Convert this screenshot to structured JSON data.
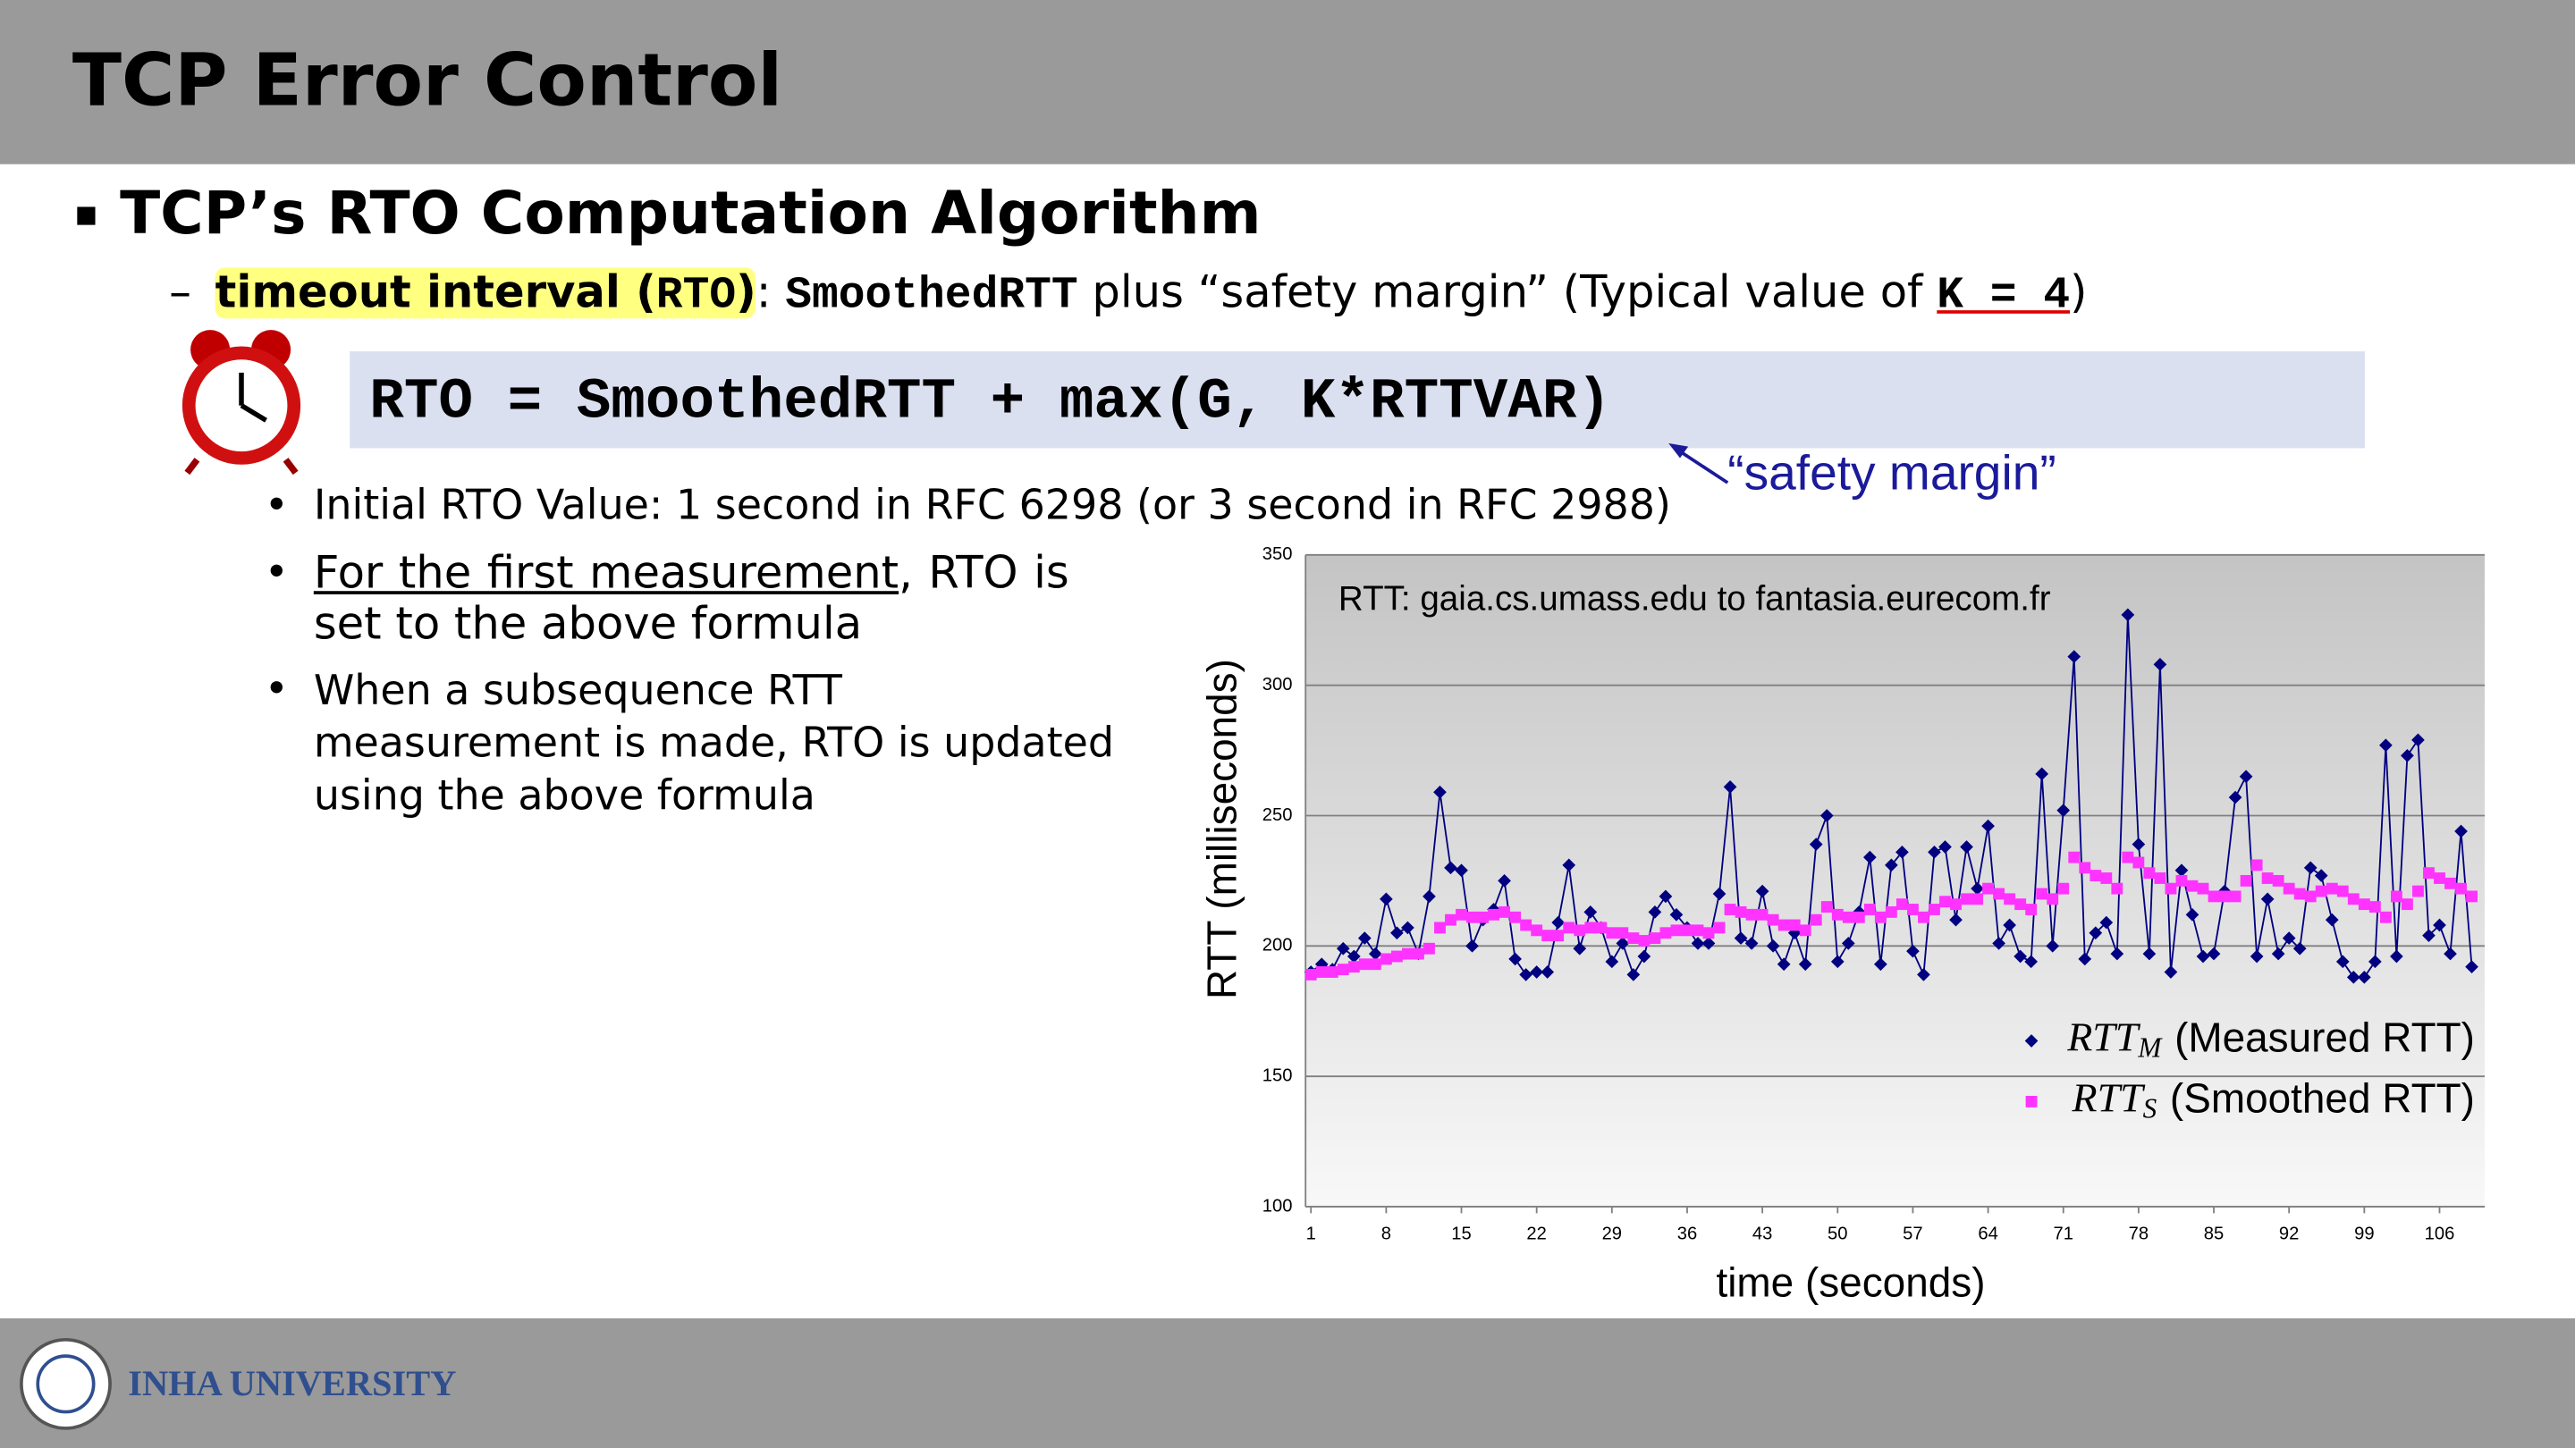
{
  "slide": {
    "title": "TCP Error Control",
    "heading": "TCP’s RTO Computation Algorithm",
    "sub_bullet": {
      "highlight_pre": "timeout interval (",
      "highlight_code": "RTO",
      "highlight_post": ")",
      "colon": ": ",
      "code": "SmoothedRTT",
      "text": " plus “safety margin” (Typical value of ",
      "k_code": "K = 4",
      "close": ")"
    },
    "formula": "RTO = SmoothedRTT + max(G, K*RTTVAR)",
    "annotation": "“safety margin”",
    "bullets": [
      {
        "text": "Initial RTO Value: 1 second in RFC 6298 (or 3 second in RFC 2988)"
      },
      {
        "underlined": "For the first measurement",
        "text": ", RTO is set to the above formula"
      },
      {
        "text": "When a subsequence RTT measurement is made, RTO is updated using the above formula"
      }
    ],
    "footer": "INHA UNIVERSITY"
  },
  "chart_data": {
    "type": "line",
    "title": "RTT: gaia.cs.umass.edu to fantasia.eurecom.fr",
    "x_label": "time (seconds)",
    "y_label": "RTT (milliseconds)",
    "x": [
      1,
      2,
      3,
      4,
      5,
      6,
      7,
      8,
      9,
      10,
      11,
      12,
      13,
      14,
      15,
      16,
      17,
      18,
      19,
      20,
      21,
      22,
      23,
      24,
      25,
      26,
      27,
      28,
      29,
      30,
      31,
      32,
      33,
      34,
      35,
      36,
      37,
      38,
      39,
      40,
      41,
      42,
      43,
      44,
      45,
      46,
      47,
      48,
      49,
      50,
      51,
      52,
      53,
      54,
      55,
      56,
      57,
      58,
      59,
      60,
      61,
      62,
      63,
      64,
      65,
      66,
      67,
      68,
      69,
      70,
      71,
      72,
      73,
      74,
      75,
      76,
      77,
      78,
      79,
      80,
      81,
      82,
      83,
      84,
      85,
      86,
      87,
      88,
      89,
      90,
      91,
      92,
      93,
      94,
      95,
      96,
      97,
      98,
      99,
      100,
      101,
      102,
      103,
      104,
      105,
      106,
      107,
      108,
      109
    ],
    "xlim": [
      0.5,
      110.2
    ],
    "xticks": [
      1,
      8,
      15,
      22,
      29,
      36,
      43,
      50,
      57,
      64,
      71,
      78,
      85,
      92,
      99,
      106
    ],
    "ylim": [
      100,
      350
    ],
    "yticks": [
      100,
      150,
      200,
      250,
      300,
      350
    ],
    "grid": true,
    "legend": "lower-right",
    "series": [
      {
        "symbol": "RTT",
        "subscript": "M",
        "name": "(Measured RTT)",
        "color": "#000080",
        "marker": "diamond",
        "line": true,
        "values": [
          190,
          193,
          191,
          199,
          196,
          203,
          197,
          218,
          205,
          207,
          197,
          219,
          259,
          230,
          229,
          200,
          210,
          214,
          225,
          195,
          189,
          190,
          190,
          209,
          231,
          199,
          213,
          207,
          194,
          201,
          189,
          196,
          213,
          219,
          212,
          207,
          201,
          201,
          220,
          261,
          203,
          201,
          221,
          200,
          193,
          205,
          193,
          239,
          250,
          194,
          201,
          213,
          234,
          193,
          231,
          236,
          198,
          189,
          236,
          238,
          210,
          238,
          222,
          246,
          201,
          208,
          196,
          194,
          266,
          200,
          252,
          311,
          195,
          205,
          209,
          197,
          327,
          239,
          197,
          308,
          190,
          229,
          212,
          196,
          197,
          221,
          257,
          265,
          196,
          218,
          197,
          203,
          199,
          230,
          227,
          210,
          194,
          188,
          188,
          194,
          277,
          196,
          273,
          279,
          204,
          208,
          197,
          244,
          192
        ]
      },
      {
        "symbol": "RTT",
        "subscript": "S",
        "name": "(Smoothed RTT)",
        "color": "#ff33ff",
        "marker": "square",
        "line": false,
        "values": [
          189,
          190,
          190,
          191,
          192,
          193,
          193,
          195,
          196,
          197,
          197,
          199,
          207,
          210,
          212,
          211,
          211,
          212,
          213,
          211,
          208,
          206,
          204,
          204,
          207,
          206,
          207,
          207,
          205,
          205,
          203,
          202,
          203,
          205,
          206,
          206,
          206,
          205,
          207,
          214,
          213,
          212,
          212,
          210,
          208,
          208,
          206,
          210,
          215,
          212,
          211,
          211,
          214,
          211,
          213,
          216,
          214,
          211,
          214,
          217,
          216,
          218,
          218,
          222,
          220,
          218,
          216,
          214,
          220,
          218,
          222,
          234,
          230,
          227,
          226,
          222,
          234,
          232,
          228,
          226,
          222,
          225,
          223,
          222,
          219,
          219,
          219,
          225,
          231,
          226,
          225,
          222,
          220,
          219,
          221,
          222,
          221,
          218,
          216,
          215,
          211,
          219,
          216,
          221,
          228,
          226,
          224,
          222,
          219
        ]
      }
    ]
  }
}
